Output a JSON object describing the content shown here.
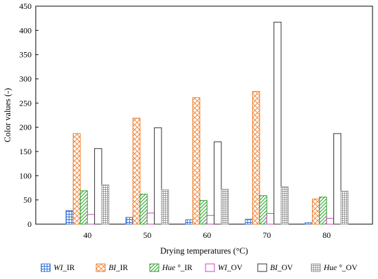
{
  "chart_data": {
    "type": "bar",
    "xlabel": "Drying temperatures (°C)",
    "ylabel": "Color values (-)",
    "ylim": [
      0,
      450
    ],
    "yticks": [
      0,
      50,
      100,
      150,
      200,
      250,
      300,
      350,
      400,
      450
    ],
    "grid": false,
    "legend_position": "bottom",
    "categories": [
      "40",
      "50",
      "60",
      "70",
      "80"
    ],
    "series": [
      {
        "name": "WI_IR",
        "legend_main": "WI",
        "legend_suffix": "_IR",
        "color": "#2e6fd6",
        "pattern": "grid-blue",
        "values": [
          28,
          14,
          9,
          10,
          3
        ]
      },
      {
        "name": "BI_IR",
        "legend_main": "BI",
        "legend_suffix": "_IR",
        "color": "#ee7d2a",
        "pattern": "cross-orange",
        "values": [
          187,
          219,
          261,
          274,
          52
        ]
      },
      {
        "name": "Hue°_IR",
        "legend_main": "Hue °",
        "legend_suffix": "_IR",
        "color": "#2ca02c",
        "pattern": "diag-green",
        "values": [
          69,
          62,
          49,
          59,
          56
        ]
      },
      {
        "name": "WI_OV",
        "legend_main": "WI",
        "legend_suffix": "_OV",
        "color": "#d042c6",
        "pattern": "solid-magenta",
        "values": [
          20,
          23,
          18,
          22,
          12
        ]
      },
      {
        "name": "BI_OV",
        "legend_main": "BI",
        "legend_suffix": "_OV",
        "color": "#333333",
        "pattern": "solid-white",
        "values": [
          156,
          199,
          170,
          417,
          187
        ]
      },
      {
        "name": "Hue°_OV",
        "legend_main": "Hue °",
        "legend_suffix": "_OV",
        "color": "#9a9a9a",
        "pattern": "grid-gray",
        "values": [
          81,
          71,
          72,
          77,
          68
        ]
      }
    ]
  }
}
